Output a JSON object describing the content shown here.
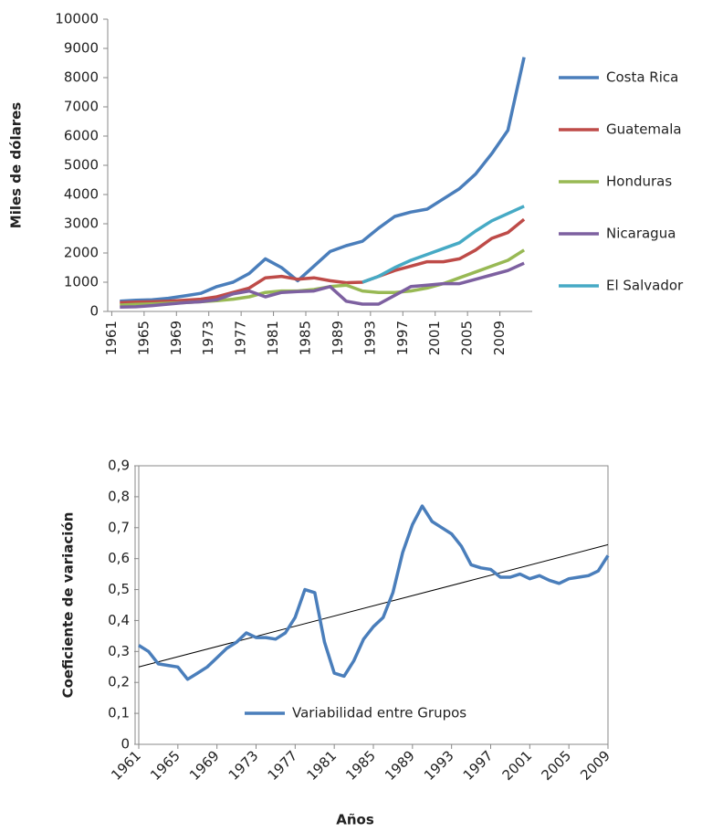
{
  "chart_data": [
    {
      "type": "line",
      "y_axis_title": "Miles de dólares",
      "x": [
        1962,
        1964,
        1966,
        1968,
        1970,
        1972,
        1974,
        1976,
        1978,
        1980,
        1982,
        1984,
        1986,
        1988,
        1990,
        1992,
        1994,
        1996,
        1998,
        2000,
        2002,
        2004,
        2006,
        2008,
        2010,
        2012
      ],
      "xlim": [
        1960.5,
        2013
      ],
      "xticks": [
        1961,
        1965,
        1969,
        1973,
        1977,
        1981,
        1985,
        1989,
        1993,
        1997,
        2001,
        2005,
        2009
      ],
      "ylim": [
        0,
        10000
      ],
      "yticks": [
        0,
        1000,
        2000,
        3000,
        4000,
        5000,
        6000,
        7000,
        8000,
        9000,
        10000
      ],
      "legend": "right",
      "series": [
        {
          "name": "Costa Rica",
          "color": "#4a7ebb",
          "values": [
            350,
            380,
            400,
            450,
            530,
            620,
            850,
            1000,
            1300,
            1800,
            1500,
            1050,
            1550,
            2050,
            2250,
            2400,
            2850,
            3250,
            3400,
            3500,
            3850,
            4200,
            4700,
            5400,
            6200,
            8700
          ]
        },
        {
          "name": "Guatemala",
          "color": "#be4b48",
          "values": [
            300,
            320,
            330,
            350,
            380,
            420,
            500,
            650,
            800,
            1150,
            1200,
            1100,
            1150,
            1050,
            980,
            1000,
            1200,
            1400,
            1550,
            1700,
            1700,
            1800,
            2100,
            2500,
            2700,
            3150
          ]
        },
        {
          "name": "Honduras",
          "color": "#98b954",
          "values": [
            220,
            240,
            260,
            280,
            300,
            330,
            370,
            420,
            500,
            650,
            700,
            700,
            750,
            850,
            900,
            700,
            650,
            650,
            700,
            800,
            950,
            1150,
            1350,
            1550,
            1750,
            2100
          ]
        },
        {
          "name": "Nicaragua",
          "color": "#7d60a0",
          "values": [
            150,
            160,
            200,
            250,
            300,
            330,
            400,
            600,
            700,
            500,
            650,
            680,
            700,
            850,
            350,
            250,
            250,
            550,
            850,
            900,
            950,
            950,
            1100,
            1250,
            1400,
            1650
          ]
        },
        {
          "name": "El Salvador",
          "color": "#46aac5",
          "values": [
            null,
            null,
            null,
            null,
            null,
            null,
            null,
            null,
            null,
            null,
            null,
            null,
            null,
            null,
            null,
            1000,
            1200,
            1500,
            1750,
            1950,
            2150,
            2350,
            2750,
            3100,
            3350,
            3600
          ]
        }
      ]
    },
    {
      "type": "line",
      "x_axis_title": "Años",
      "y_axis_title": "Coeficiente de variación",
      "x": [
        1961,
        1962,
        1963,
        1964,
        1965,
        1966,
        1967,
        1968,
        1969,
        1970,
        1971,
        1972,
        1973,
        1974,
        1975,
        1976,
        1977,
        1978,
        1979,
        1980,
        1981,
        1982,
        1983,
        1984,
        1985,
        1986,
        1987,
        1988,
        1989,
        1990,
        1991,
        1992,
        1993,
        1994,
        1995,
        1996,
        1997,
        1998,
        1999,
        2000,
        2001,
        2002,
        2003,
        2004,
        2005,
        2006,
        2007,
        2008,
        2009
      ],
      "xlim": [
        1961,
        2009
      ],
      "xticks": [
        1961,
        1965,
        1969,
        1973,
        1977,
        1981,
        1985,
        1989,
        1993,
        1997,
        2001,
        2005,
        2009
      ],
      "ylim": [
        0,
        0.9
      ],
      "yticks": [
        0,
        {
          "value": 0.1,
          "label": "0,1"
        },
        {
          "value": 0.2,
          "label": "0,2"
        },
        {
          "value": 0.3,
          "label": "0,3"
        },
        {
          "value": 0.4,
          "label": "0,4"
        },
        {
          "value": 0.5,
          "label": "0,5"
        },
        {
          "value": 0.6,
          "label": "0,6"
        },
        {
          "value": 0.7,
          "label": "0,7"
        },
        {
          "value": 0.8,
          "label": "0,8"
        },
        {
          "value": 0.9,
          "label": "0,9"
        }
      ],
      "legend": "bottom",
      "series": [
        {
          "name": "Variabilidad entre Grupos",
          "color": "#4a7ebb",
          "values": [
            0.32,
            0.3,
            0.26,
            0.255,
            0.25,
            0.21,
            0.23,
            0.25,
            0.28,
            0.31,
            0.33,
            0.36,
            0.345,
            0.345,
            0.34,
            0.36,
            0.41,
            0.5,
            0.49,
            0.33,
            0.23,
            0.22,
            0.27,
            0.34,
            0.38,
            0.41,
            0.49,
            0.62,
            0.71,
            0.77,
            0.72,
            0.7,
            0.68,
            0.64,
            0.58,
            0.57,
            0.565,
            0.54,
            0.54,
            0.55,
            0.535,
            0.545,
            0.53,
            0.52,
            0.535,
            0.54,
            0.545,
            0.56,
            0.61
          ]
        }
      ],
      "trend": {
        "x": [
          1961,
          2009
        ],
        "values": [
          0.25,
          0.645
        ],
        "color": "#000000"
      }
    }
  ]
}
